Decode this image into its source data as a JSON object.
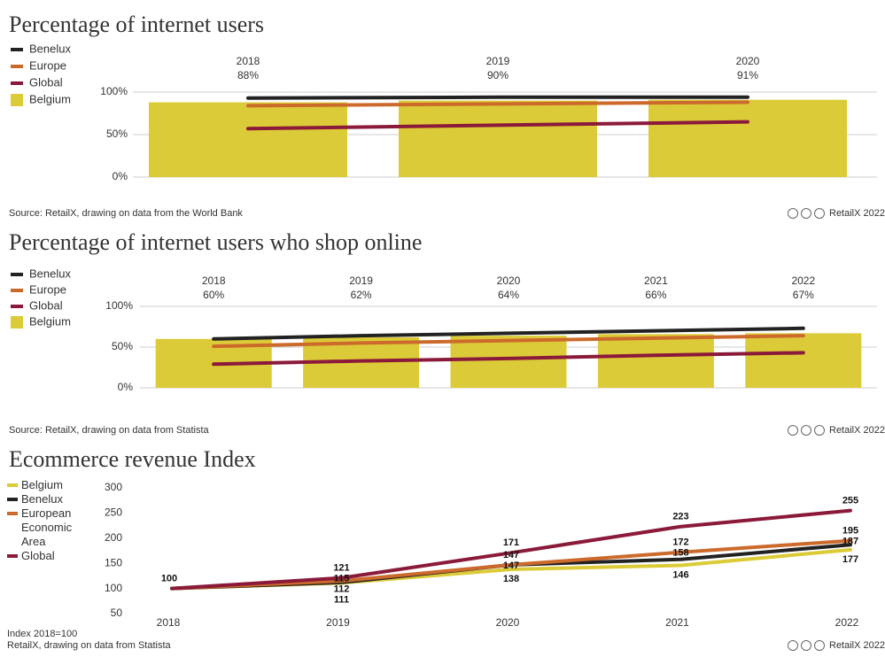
{
  "chart_data": [
    {
      "type": "bar",
      "title": "Percentage of internet users",
      "categories": [
        "2018",
        "2019",
        "2020"
      ],
      "series": [
        {
          "name": "Benelux",
          "type": "line",
          "color": "#222222",
          "values": [
            93,
            94,
            94
          ]
        },
        {
          "name": "Europe",
          "type": "line",
          "color": "#cc6a2c",
          "values": [
            84,
            86,
            88
          ]
        },
        {
          "name": "Global",
          "type": "line",
          "color": "#8b1a3a",
          "values": [
            57,
            61,
            65
          ]
        },
        {
          "name": "Belgium",
          "type": "bar",
          "color": "#dccb38",
          "values": [
            88,
            90,
            91
          ],
          "value_labels": [
            "88%",
            "90%",
            "91%"
          ]
        }
      ],
      "ylim": [
        0,
        100
      ],
      "yticks": [
        {
          "value": 0,
          "label": "0%"
        },
        {
          "value": 50,
          "label": "50%"
        },
        {
          "value": 100,
          "label": "100%"
        }
      ],
      "grid": true,
      "source": "Source: RetailX, drawing on data from the World Bank",
      "credit": "RetailX 2022"
    },
    {
      "type": "bar",
      "title": "Percentage of internet users who shop online",
      "categories": [
        "2018",
        "2019",
        "2020",
        "2021",
        "2022"
      ],
      "series": [
        {
          "name": "Benelux",
          "type": "line",
          "color": "#222222",
          "values": [
            60,
            64,
            67,
            70,
            73
          ]
        },
        {
          "name": "Europe",
          "type": "line",
          "color": "#cc6a2c",
          "values": [
            51,
            55,
            58,
            61,
            64
          ]
        },
        {
          "name": "Global",
          "type": "line",
          "color": "#8b1a3a",
          "values": [
            29,
            33,
            36,
            40,
            43
          ]
        },
        {
          "name": "Belgium",
          "type": "bar",
          "color": "#dccb38",
          "values": [
            60,
            62,
            64,
            66,
            67
          ],
          "value_labels": [
            "60%",
            "62%",
            "64%",
            "66%",
            "67%"
          ]
        }
      ],
      "ylim": [
        0,
        100
      ],
      "yticks": [
        {
          "value": 0,
          "label": "0%"
        },
        {
          "value": 50,
          "label": "50%"
        },
        {
          "value": 100,
          "label": "100%"
        }
      ],
      "grid": true,
      "source": "Source: RetailX, drawing on data from Statista",
      "credit": "RetailX 2022"
    },
    {
      "type": "line",
      "title": "Ecommerce revenue Index",
      "categories": [
        "2018",
        "2019",
        "2020",
        "2021",
        "2022"
      ],
      "series": [
        {
          "name": "Belgium",
          "color": "#dccb38",
          "values": [
            100,
            111,
            138,
            146,
            177
          ]
        },
        {
          "name": "Benelux",
          "color": "#222222",
          "values": [
            100,
            112,
            147,
            158,
            187
          ]
        },
        {
          "name": "European Economic Area",
          "color": "#cc6a2c",
          "values": [
            100,
            115,
            147,
            172,
            195
          ]
        },
        {
          "name": "Global",
          "color": "#8b1a3a",
          "values": [
            100,
            121,
            171,
            223,
            255
          ]
        }
      ],
      "ylim": [
        50,
        300
      ],
      "yticks": [
        50,
        100,
        150,
        200,
        250,
        300
      ],
      "grid": false,
      "data_labels": true,
      "note": "Index 2018=100",
      "source": "RetailX, drawing on data from Statista",
      "credit": "RetailX 2022"
    }
  ]
}
